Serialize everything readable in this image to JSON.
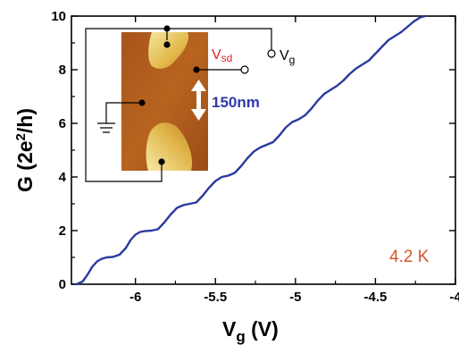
{
  "chart_data": {
    "type": "line",
    "title": "",
    "xlabel": "V",
    "xlabel_sub": "g",
    "xlabel_unit": " (V)",
    "ylabel": "G (2e",
    "ylabel_sup": "2",
    "ylabel_tail": "/h)",
    "xlim": [
      -6.4,
      -4.0
    ],
    "ylim": [
      0,
      10
    ],
    "xticks": [
      -6,
      -5.5,
      -5,
      -4.5,
      -4
    ],
    "xtick_labels": [
      "-6",
      "-5.5",
      "-5",
      "-4.5",
      "-4"
    ],
    "yticks": [
      0,
      2,
      4,
      6,
      8,
      10
    ],
    "ytick_labels": [
      "0",
      "2",
      "4",
      "6",
      "8",
      "10"
    ],
    "grid": false,
    "series": [
      {
        "name": "",
        "color": "#2b3a9e",
        "x": [
          -6.37,
          -6.33,
          -6.3,
          -6.27,
          -6.24,
          -6.21,
          -6.18,
          -6.14,
          -6.1,
          -6.06,
          -6.03,
          -6.0,
          -5.97,
          -5.94,
          -5.9,
          -5.86,
          -5.82,
          -5.78,
          -5.74,
          -5.7,
          -5.66,
          -5.62,
          -5.58,
          -5.54,
          -5.5,
          -5.46,
          -5.42,
          -5.38,
          -5.34,
          -5.3,
          -5.26,
          -5.22,
          -5.18,
          -5.14,
          -5.1,
          -5.06,
          -5.02,
          -4.98,
          -4.94,
          -4.9,
          -4.86,
          -4.82,
          -4.78,
          -4.74,
          -4.7,
          -4.66,
          -4.62,
          -4.58,
          -4.54,
          -4.5,
          -4.46,
          -4.42,
          -4.38,
          -4.34,
          -4.3,
          -4.26,
          -4.22,
          -4.19
        ],
        "y": [
          0.0,
          0.1,
          0.35,
          0.65,
          0.85,
          0.95,
          1.0,
          1.02,
          1.1,
          1.35,
          1.65,
          1.85,
          1.95,
          1.98,
          2.0,
          2.05,
          2.3,
          2.6,
          2.85,
          2.95,
          3.0,
          3.05,
          3.3,
          3.6,
          3.85,
          4.0,
          4.05,
          4.15,
          4.4,
          4.7,
          4.95,
          5.1,
          5.2,
          5.3,
          5.55,
          5.85,
          6.05,
          6.15,
          6.3,
          6.55,
          6.85,
          7.1,
          7.25,
          7.4,
          7.6,
          7.85,
          8.05,
          8.2,
          8.35,
          8.6,
          8.85,
          9.1,
          9.25,
          9.4,
          9.6,
          9.8,
          9.95,
          10.0
        ]
      }
    ],
    "annotations": {
      "temperature": "4.2 K",
      "scale_bar": "150nm",
      "vsd_main": "V",
      "vsd_sub": "sd",
      "vg_main": "V",
      "vg_sub": "g"
    }
  }
}
